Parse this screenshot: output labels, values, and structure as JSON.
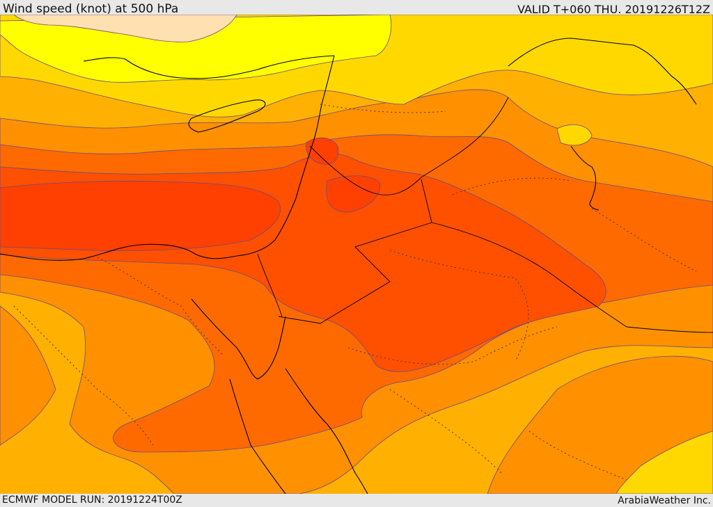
{
  "header": {
    "title": "Wind speed (knot) at 500 hPa",
    "valid": "VALID T+060 THU. 20191226T12Z"
  },
  "footer": {
    "model_run": "ECMWF MODEL RUN: 20191224T00Z",
    "credit": "ArabiaWeather Inc."
  },
  "map": {
    "field": "wind speed",
    "level": "500 hPa",
    "fill_colors": {
      "very_low": "#ffe0b0",
      "low": "#ffff00",
      "moderate_low": "#ffd800",
      "moderate": "#ffb000",
      "moderate_high": "#ff9000",
      "high": "#ff6a00",
      "very_high": "#ff5000",
      "jet_core": "#ff4000"
    },
    "line_colors": {
      "coastline": "#000000",
      "border": "#000000",
      "contour": "#6a4a80"
    }
  }
}
